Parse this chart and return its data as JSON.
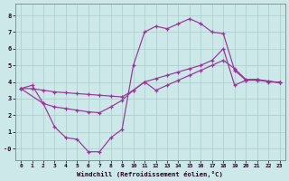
{
  "xlabel": "Windchill (Refroidissement éolien,°C)",
  "bg_color": "#cce8e8",
  "line_color": "#993399",
  "grid_color": "#aacccc",
  "xlim": [
    -0.5,
    23.5
  ],
  "ylim": [
    -0.7,
    8.7
  ],
  "xticks": [
    0,
    1,
    2,
    3,
    4,
    5,
    6,
    7,
    8,
    9,
    10,
    11,
    12,
    13,
    14,
    15,
    16,
    17,
    18,
    19,
    20,
    21,
    22,
    23
  ],
  "yticks": [
    0,
    1,
    2,
    3,
    4,
    5,
    6,
    7,
    8
  ],
  "yticklabels": [
    "0",
    "1",
    "2",
    "3",
    "4",
    "5",
    "6",
    "7",
    "8"
  ],
  "line1_x": [
    0,
    1,
    2,
    3,
    4,
    5,
    6,
    7,
    8,
    9,
    10,
    11,
    12,
    13,
    14,
    15,
    16,
    17,
    18,
    19,
    20,
    21,
    22,
    23
  ],
  "line1_y": [
    3.6,
    3.8,
    2.7,
    1.3,
    0.65,
    0.55,
    -0.2,
    -0.2,
    0.65,
    1.15,
    5.0,
    7.0,
    7.35,
    7.2,
    7.5,
    7.8,
    7.5,
    7.0,
    6.9,
    4.7,
    4.1,
    4.1,
    4.05,
    3.95
  ],
  "line2_x": [
    0,
    1,
    2,
    3,
    4,
    5,
    6,
    7,
    8,
    9,
    10,
    11,
    12,
    13,
    14,
    15,
    16,
    17,
    18,
    19,
    20,
    21,
    22,
    23
  ],
  "line2_y": [
    3.6,
    3.6,
    3.5,
    3.4,
    3.35,
    3.3,
    3.25,
    3.2,
    3.15,
    3.1,
    3.5,
    4.0,
    4.2,
    4.4,
    4.6,
    4.8,
    5.0,
    5.3,
    6.0,
    3.8,
    4.1,
    4.15,
    4.0,
    4.0
  ],
  "line3_x": [
    0,
    2,
    3,
    4,
    5,
    6,
    7,
    8,
    9,
    10,
    11,
    12,
    13,
    14,
    15,
    16,
    17,
    18,
    19,
    20,
    21,
    22,
    23
  ],
  "line3_y": [
    3.6,
    2.7,
    2.5,
    2.4,
    2.3,
    2.2,
    2.15,
    2.5,
    2.9,
    3.5,
    4.0,
    3.5,
    3.8,
    4.1,
    4.4,
    4.7,
    5.0,
    5.3,
    4.8,
    4.15,
    4.15,
    4.05,
    3.95
  ]
}
